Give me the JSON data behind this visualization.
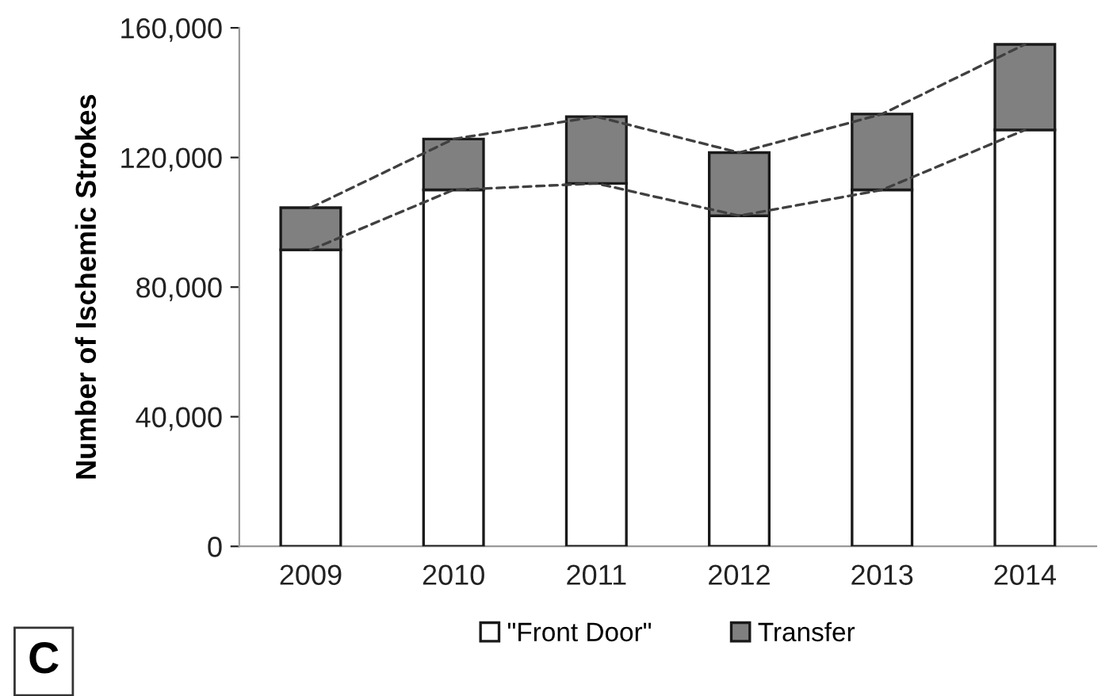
{
  "chart_data": {
    "type": "bar",
    "stacked": true,
    "ylabel": "Number of Ischemic Strokes",
    "categories": [
      "2009",
      "2010",
      "2011",
      "2012",
      "2013",
      "2014"
    ],
    "series": [
      {
        "name": "\"Front Door\"",
        "color": "#ffffff",
        "values": [
          91500,
          110000,
          112000,
          102000,
          110000,
          128500
        ]
      },
      {
        "name": "Transfer",
        "color": "#808080",
        "values": [
          13000,
          15700,
          20600,
          19500,
          23400,
          26400
        ]
      },
      {
        "type": "line",
        "color": "#404040",
        "line_style": "dashed",
        "values": [
          91500,
          110000,
          112000,
          102000,
          110000,
          128500
        ]
      },
      {
        "type": "line",
        "color": "#404040",
        "line_style": "dashed",
        "values": [
          104500,
          125700,
          132600,
          121500,
          133400,
          154900
        ]
      }
    ],
    "ylim": [
      0,
      160000
    ],
    "yticks": [
      {
        "value": 0,
        "label": "0"
      },
      {
        "value": 40000,
        "label": "40,000"
      },
      {
        "value": 80000,
        "label": "80,000"
      },
      {
        "value": 120000,
        "label": "120,000"
      },
      {
        "value": 160000,
        "label": "160,000"
      }
    ],
    "grid": false,
    "legend": "bottom",
    "annotations": [
      "C"
    ]
  }
}
